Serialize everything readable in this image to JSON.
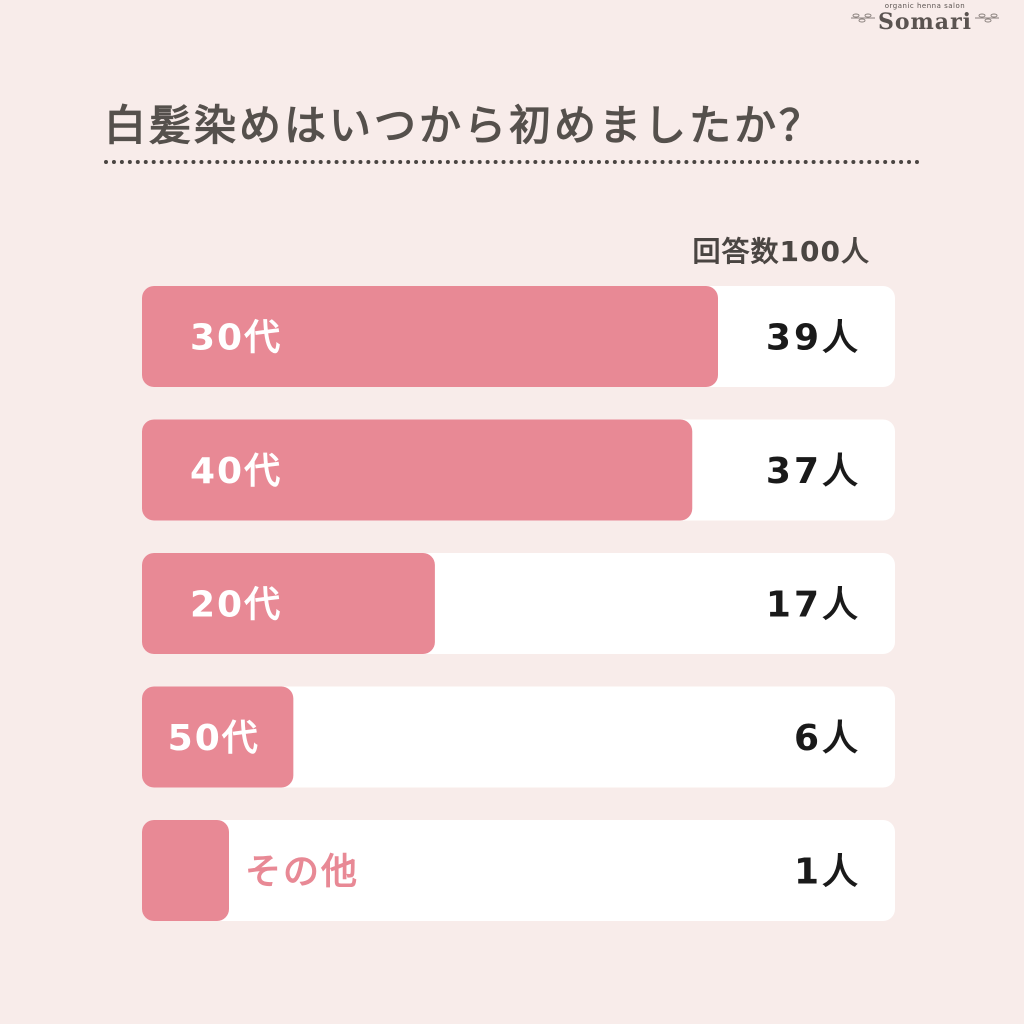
{
  "brand": {
    "tagline": "organic henna salon",
    "name": "Somari"
  },
  "respondents_note": "回答数100人",
  "colors": {
    "background": "#f8ecea",
    "bar_fill": "#e88995",
    "track": "#ffffff",
    "category_label_on_bar": "#ffffff",
    "category_label_off_bar": "#e88995",
    "value_label": "#1a1a1a",
    "title": "#55504c"
  },
  "chart_data": {
    "type": "bar",
    "orientation": "horizontal",
    "title": "白髪染めはいつから初めましたか？",
    "categories": [
      "30代",
      "40代",
      "20代",
      "50代",
      "その他"
    ],
    "values": [
      39,
      37,
      17,
      6,
      1
    ],
    "value_labels": [
      "39人",
      "37人",
      "17人",
      "6人",
      "1人"
    ],
    "unit": "人",
    "xlim": [
      0,
      50
    ],
    "grid": false,
    "legend": "none"
  }
}
